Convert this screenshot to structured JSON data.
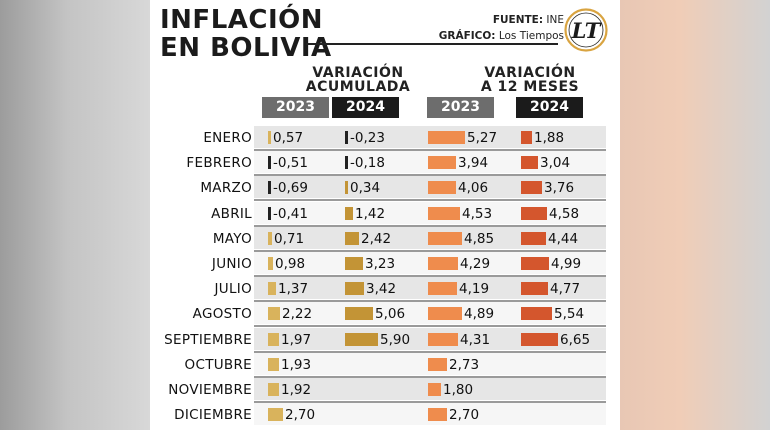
{
  "title": [
    "INFLACIÓN",
    "EN BOLIVIA"
  ],
  "credits": {
    "source_label": "FUENTE:",
    "source": "INE",
    "graphic_label": "GRÁFICO:",
    "graphic": "Los Tiempos"
  },
  "logo_text": "LT",
  "colors": {
    "ac2023": "#d9b35c",
    "ac2024": "#c39436",
    "negative": "#222222",
    "m2023": "#ef8c4d",
    "m2024": "#d4562d",
    "year_header": "#6d6d6d",
    "year_header_dark": "#1b1b1b"
  },
  "chart_data": {
    "type": "table",
    "groups": [
      {
        "title": [
          "VARIACIÓN",
          "ACUMULADA"
        ],
        "years": [
          "2023",
          "2024"
        ]
      },
      {
        "title": [
          "VARIACIÓN",
          "A 12 MESES"
        ],
        "years": [
          "2023",
          "2024"
        ]
      }
    ],
    "months": [
      "ENERO",
      "FEBRERO",
      "MARZO",
      "ABRIL",
      "MAYO",
      "JUNIO",
      "JULIO",
      "AGOSTO",
      "SEPTIEMBRE",
      "OCTUBRE",
      "NOVIEMBRE",
      "DICIEMBRE"
    ],
    "acumulada_2023": [
      0.57,
      -0.51,
      -0.69,
      -0.41,
      0.71,
      0.98,
      1.37,
      2.22,
      1.97,
      1.93,
      1.92,
      2.7
    ],
    "acumulada_2024": [
      -0.23,
      -0.18,
      0.34,
      1.42,
      2.42,
      3.23,
      3.42,
      5.06,
      5.9,
      null,
      null,
      null
    ],
    "doce_meses_2023": [
      5.27,
      3.94,
      4.06,
      4.53,
      4.85,
      4.29,
      4.19,
      4.89,
      4.31,
      2.73,
      1.8,
      2.7
    ],
    "doce_meses_2024": [
      1.88,
      3.04,
      3.76,
      4.58,
      4.44,
      4.99,
      4.77,
      5.54,
      6.65,
      null,
      null,
      null
    ],
    "labels": {
      "acumulada_2023": [
        "0,57",
        "-0,51",
        "-0,69",
        "-0,41",
        "0,71",
        "0,98",
        "1,37",
        "2,22",
        "1,97",
        "1,93",
        "1,92",
        "2,70"
      ],
      "acumulada_2024": [
        "-0,23",
        "-0,18",
        "0,34",
        "1,42",
        "2,42",
        "3,23",
        "3,42",
        "5,06",
        "5,90",
        "",
        "",
        ""
      ],
      "doce_meses_2023": [
        "5,27",
        "3,94",
        "4,06",
        "4,53",
        "4,85",
        "4,29",
        "4,19",
        "4,89",
        "4,31",
        "2,73",
        "1,80",
        "2,70"
      ],
      "doce_meses_2024": [
        "1,88",
        "3,04",
        "3,76",
        "4,58",
        "4,44",
        "4,99",
        "4,77",
        "5,54",
        "6,65",
        "",
        "",
        ""
      ]
    }
  }
}
